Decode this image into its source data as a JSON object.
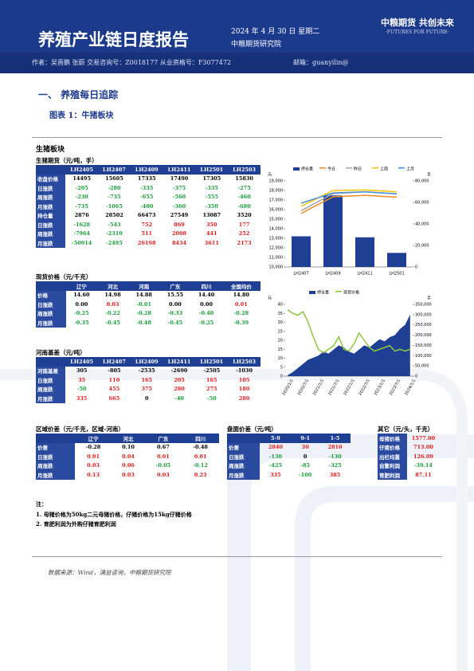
{
  "header": {
    "title": "养殖产业链日度报告",
    "date": "2024 年 4 月 30 日 星期二",
    "institute": "中粮期货研究院",
    "logo": "中粮期货 共创未来",
    "slogan": "·FUTURES FOR FUTURE·",
    "authors": "作者：吴晋鹏 张蔚 交易咨询号：Z0018177 从业资格号：F3077472",
    "email": "邮箱：guanyilin@"
  },
  "section": "一、 养殖每日追踪",
  "figure_title": "图表 1：牛猪板块",
  "panel_title": "生猪板块",
  "tables": [
    {
      "title": "生猪期货（元/吨，手）",
      "columns": [
        "LH2405",
        "LH2407",
        "LH2409",
        "LH2411",
        "LH2501",
        "LH2503"
      ],
      "rows": [
        [
          "收盘价格",
          "14495",
          "15605",
          "17335",
          "17490",
          "17305",
          "15830"
        ],
        [
          "日涨跌",
          "-205",
          "-280",
          "-335",
          "-375",
          "-335",
          "-275"
        ],
        [
          "周涨跌",
          "-230",
          "-735",
          "-655",
          "-560",
          "-555",
          "-460"
        ],
        [
          "月涨跌",
          "-735",
          "-1065",
          "-400",
          "-360",
          "-350",
          "-680"
        ],
        [
          "持仓量",
          "2876",
          "28502",
          "66473",
          "27549",
          "13087",
          "3520"
        ],
        [
          "日涨跌",
          "-1628",
          "-543",
          "752",
          "869",
          "350",
          "177"
        ],
        [
          "周涨跌",
          "-7964",
          "-2310",
          "511",
          "2008",
          "441",
          "252"
        ],
        [
          "月涨跌",
          "-50914",
          "-2495",
          "26198",
          "8434",
          "3611",
          "2173"
        ]
      ]
    },
    {
      "title": "现货价格（元/千克）",
      "columns": [
        "辽宁",
        "河北",
        "河南",
        "广东",
        "四川",
        "全国均价"
      ],
      "rows": [
        [
          "价格",
          "14.60",
          "14.98",
          "14.88",
          "15.55",
          "14.40",
          "14.80"
        ],
        [
          "日涨跌",
          "0.00",
          "0.03",
          "-0.01",
          "0.00",
          "0.00",
          "0.01"
        ],
        [
          "周涨跌",
          "-0.25",
          "-0.22",
          "-0.28",
          "-0.33",
          "-0.40",
          "-0.28"
        ],
        [
          "月涨跌",
          "-0.35",
          "-0.45",
          "-0.48",
          "-0.45",
          "-0.25",
          "-0.39"
        ]
      ]
    },
    {
      "title": "河南基差（元/吨）",
      "columns": [
        "LH2405",
        "LH2407",
        "LH2409",
        "LH2411",
        "LH2501",
        "LH2503"
      ],
      "rows": [
        [
          "河南基差",
          "305",
          "-805",
          "-2535",
          "-2690",
          "-2505",
          "-1030"
        ],
        [
          "日涨跌",
          "35",
          "110",
          "165",
          "205",
          "165",
          "105"
        ],
        [
          "周涨跌",
          "-50",
          "455",
          "375",
          "280",
          "275",
          "180"
        ],
        [
          "月涨跌",
          "335",
          "665",
          "0",
          "-40",
          "-50",
          "280"
        ]
      ]
    },
    {
      "title": "区域价差（元/千克，区域-河南）",
      "columns": [
        "辽宁",
        "河北",
        "广东",
        "四川"
      ],
      "rows": [
        [
          "价差",
          "-0.28",
          "0.10",
          "0.67",
          "-0.48"
        ],
        [
          "日涨跌",
          "0.01",
          "0.04",
          "0.01",
          "0.01"
        ],
        [
          "周涨跌",
          "0.03",
          "0.06",
          "-0.05",
          "-0.12"
        ],
        [
          "月涨跌",
          "0.13",
          "0.03",
          "0.03",
          "0.23"
        ]
      ]
    },
    {
      "title": "盘面价差（元/吨）",
      "columns": [
        "5-9",
        "9-1",
        "1-5"
      ],
      "rows": [
        [
          "价差",
          "2840",
          "30",
          "2810"
        ],
        [
          "日涨跌",
          "-130",
          "0",
          "-130"
        ],
        [
          "周涨跌",
          "-425",
          "-85",
          "-325"
        ],
        [
          "月涨跌",
          "335",
          "-100",
          "385"
        ]
      ]
    },
    {
      "title": "其它（元/头，千克）",
      "columns": [],
      "rows": [
        [
          "母猪价格",
          "1577.00"
        ],
        [
          "仔猪价格",
          "713.00"
        ],
        [
          "出栏均重",
          "126.09"
        ],
        [
          "自繁利润",
          "-39.14"
        ],
        [
          "育肥利润",
          "87.11"
        ]
      ]
    }
  ],
  "notes": {
    "title": "注：",
    "items": [
      "1. 母猪价格为50kg二元母猪价格，仔猪价格为15kg仔猪价格",
      "2. 育肥利润为外购仔猪育肥利润"
    ]
  },
  "source": "数据来源：Wind，涌益咨询，中粮期货研究院",
  "charts": [
    {
      "type": "bar_line",
      "ylabel": "元",
      "y2label": "手",
      "categories": [
        "LH2407",
        "LH2409",
        "LH2411",
        "LH2501"
      ],
      "series": [
        {
          "name": "持仓量",
          "color": "#1f3f95",
          "axis": "y2",
          "kind": "bar",
          "values": [
            28502,
            66473,
            27549,
            13087
          ]
        },
        {
          "name": "今日",
          "color": "#f08a24",
          "kind": "line",
          "values": [
            15605,
            17335,
            17490,
            17305
          ]
        },
        {
          "name": "昨日",
          "color": "#a5a5a5",
          "kind": "line",
          "values": [
            15885,
            17670,
            17865,
            17640
          ]
        },
        {
          "name": "上周",
          "color": "#f5c400",
          "kind": "line",
          "values": [
            16340,
            17990,
            18050,
            17860
          ]
        },
        {
          "name": "上月",
          "color": "#4a90d9",
          "kind": "line",
          "values": [
            16670,
            17735,
            17850,
            17655
          ]
        }
      ],
      "ylim": [
        10000,
        19000
      ],
      "yticks": [
        {
          "value": 10000,
          "label": "10,000"
        },
        {
          "value": 11000,
          "label": "11,000"
        },
        {
          "value": 12000,
          "label": "12,000"
        },
        {
          "value": 13000,
          "label": "13,000"
        },
        {
          "value": 14000,
          "label": "14,000"
        },
        {
          "value": 15000,
          "label": "15,000"
        },
        {
          "value": 16000,
          "label": "16,000"
        },
        {
          "value": 17000,
          "label": "17,000"
        },
        {
          "value": 18000,
          "label": "18,000"
        },
        {
          "value": 19000,
          "label": "19,000"
        }
      ],
      "y2lim": [
        0,
        80000
      ],
      "y2ticks": [
        0,
        {
          "value": 20000,
          "label": "20,000"
        },
        {
          "value": 40000,
          "label": "40,000"
        },
        {
          "value": 60000,
          "label": "60,000"
        },
        {
          "value": 80000,
          "label": "80,000"
        }
      ]
    },
    {
      "type": "area_line",
      "ylabel": "元",
      "y2label": "手",
      "categories": [
        "2020/1/1",
        null,
        null,
        "2020/7/1",
        null,
        null,
        "2021/1/1",
        null,
        null,
        "2021/7/1",
        null,
        null,
        "2022/1/1",
        null,
        null,
        "2022/7/1",
        null,
        null,
        "2023/1/1",
        null,
        null,
        "2023/7/1",
        null,
        null,
        "2024/1/1"
      ],
      "series": [
        {
          "name": "持仓量",
          "color": "#1f3f95",
          "axis": "y2",
          "kind": "area",
          "values": [
            5000,
            20000,
            40000,
            60000,
            80000,
            90000,
            100000,
            120000,
            110000,
            130000,
            150000,
            140000,
            120000,
            110000,
            130000,
            150000,
            140000,
            160000,
            180000,
            170000,
            190000,
            200000,
            230000,
            250000,
            300000
          ]
        },
        {
          "name": "现货价格",
          "color": "#8dc63f",
          "kind": "line",
          "values": [
            37,
            35,
            34,
            36,
            30,
            22,
            15,
            13,
            15,
            17,
            22,
            15,
            14,
            18,
            24,
            20,
            16,
            14,
            15,
            16,
            17,
            14,
            15,
            14,
            15
          ]
        }
      ],
      "ylim": [
        0,
        40
      ],
      "yticks": [
        0,
        5,
        10,
        15,
        20,
        25,
        30,
        35,
        40
      ],
      "y2lim": [
        0,
        350000
      ],
      "y2ticks": [
        0,
        {
          "value": 50000,
          "label": "50,000"
        },
        {
          "value": 100000,
          "label": "100,000"
        },
        {
          "value": 150000,
          "label": "150,000"
        },
        {
          "value": 200000,
          "label": "200,000"
        },
        {
          "value": 250000,
          "label": "250,000"
        },
        {
          "value": 300000,
          "label": "300,000"
        },
        {
          "value": 350000,
          "label": "350,000"
        }
      ]
    }
  ]
}
